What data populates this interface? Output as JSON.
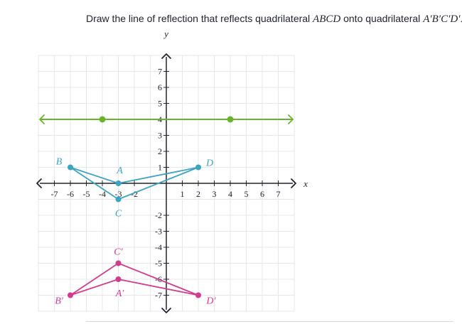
{
  "prompt": {
    "text_before": "Draw the line of reflection that reflects quadrilateral ",
    "shape_original": "ABCD",
    "text_middle": " onto quadrilateral ",
    "shape_image": "A′B′C′D′",
    "text_after": "."
  },
  "graph": {
    "axis_x_label": "x",
    "axis_y_label": "y",
    "x_ticks": [
      "-7",
      "-6",
      "-5",
      "-4",
      "-3",
      "-2",
      "1",
      "2",
      "3",
      "4",
      "5",
      "6",
      "7"
    ],
    "x_tick_values": [
      -7,
      -6,
      -5,
      -4,
      -3,
      -2,
      1,
      2,
      3,
      4,
      5,
      6,
      7
    ],
    "y_ticks": [
      "7",
      "6",
      "5",
      "4",
      "3",
      "2",
      "1",
      "-2",
      "-3",
      "-4",
      "-5",
      "-6",
      "-7"
    ],
    "y_tick_values": [
      7,
      6,
      5,
      4,
      3,
      2,
      1,
      -2,
      -3,
      -4,
      -5,
      -6,
      -7
    ],
    "range": [
      -8,
      8
    ],
    "colors": {
      "grid": "#e6e7e8",
      "axis": "#21242c",
      "reflection_line": "#6ab42d",
      "original": "#3da3c4",
      "image": "#d13c8f"
    },
    "reflection_line": {
      "points": [
        [
          -4,
          4
        ],
        [
          4,
          4
        ]
      ],
      "arrows": "both"
    },
    "quadrilateral_original": {
      "vertices": [
        {
          "label": "A",
          "x": -3,
          "y": 0
        },
        {
          "label": "B",
          "x": -6,
          "y": 1
        },
        {
          "label": "C",
          "x": -3,
          "y": -1
        },
        {
          "label": "D",
          "x": 2,
          "y": 1
        }
      ]
    },
    "quadrilateral_image": {
      "vertices": [
        {
          "label": "A′",
          "x": -3,
          "y": -6
        },
        {
          "label": "B′",
          "x": -6,
          "y": -7
        },
        {
          "label": "C′",
          "x": -3,
          "y": -5
        },
        {
          "label": "D′",
          "x": 2,
          "y": -7
        }
      ]
    }
  }
}
